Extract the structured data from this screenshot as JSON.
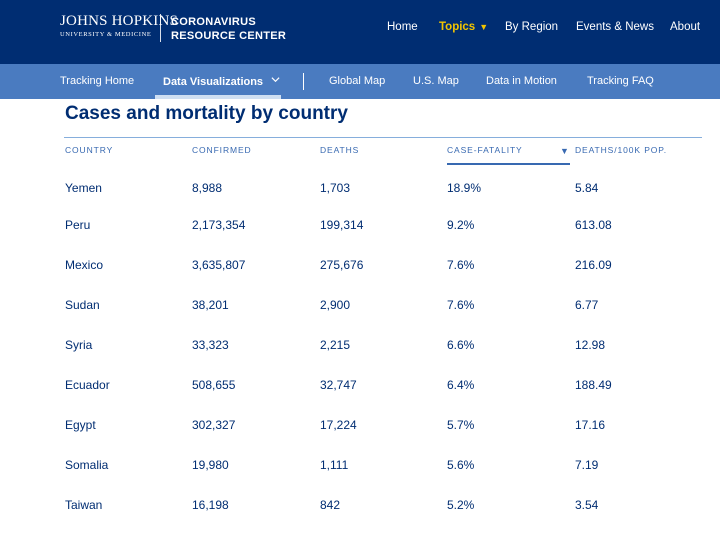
{
  "header": {
    "logo_name": "JOHNS HOPKINS",
    "logo_sub": "UNIVERSITY & MEDICINE",
    "center_line1": "CORONAVIRUS",
    "center_line2": "RESOURCE CENTER",
    "nav": [
      "Home",
      "Topics",
      "By Region",
      "Events & News",
      "About"
    ],
    "active_nav": "Topics",
    "topics_caret": "▼"
  },
  "subnav": {
    "items": [
      "Tracking Home",
      "Data Visualizations",
      "Global Map",
      "U.S. Map",
      "Data in Motion",
      "Tracking FAQ"
    ],
    "active": "Data Visualizations"
  },
  "table": {
    "title": "Cases and mortality by country",
    "columns": [
      "COUNTRY",
      "CONFIRMED",
      "DEATHS",
      "CASE-FATALITY",
      "DEATHS/100K POP."
    ],
    "sorted_column": "CASE-FATALITY",
    "sort_direction": "descending",
    "sort_icon": "▼",
    "rows": [
      [
        "Yemen",
        "8,988",
        "1,703",
        "18.9%",
        "5.84"
      ],
      [
        "Peru",
        "2,173,354",
        "199,314",
        "9.2%",
        "613.08"
      ],
      [
        "Mexico",
        "3,635,807",
        "275,676",
        "7.6%",
        "216.09"
      ],
      [
        "Sudan",
        "38,201",
        "2,900",
        "7.6%",
        "6.77"
      ],
      [
        "Syria",
        "33,323",
        "2,215",
        "6.6%",
        "12.98"
      ],
      [
        "Ecuador",
        "508,655",
        "32,747",
        "6.4%",
        "188.49"
      ],
      [
        "Egypt",
        "302,327",
        "17,224",
        "5.7%",
        "17.16"
      ],
      [
        "Somalia",
        "19,980",
        "1,111",
        "5.6%",
        "7.19"
      ],
      [
        "Taiwan",
        "16,198",
        "842",
        "5.2%",
        "3.54"
      ]
    ]
  },
  "colors": {
    "header_bg": "#002d72",
    "subnav_bg": "#4a7bc0",
    "accent_yellow": "#f1c400",
    "text_navy": "#002d72",
    "column_header": "#3869b1"
  }
}
